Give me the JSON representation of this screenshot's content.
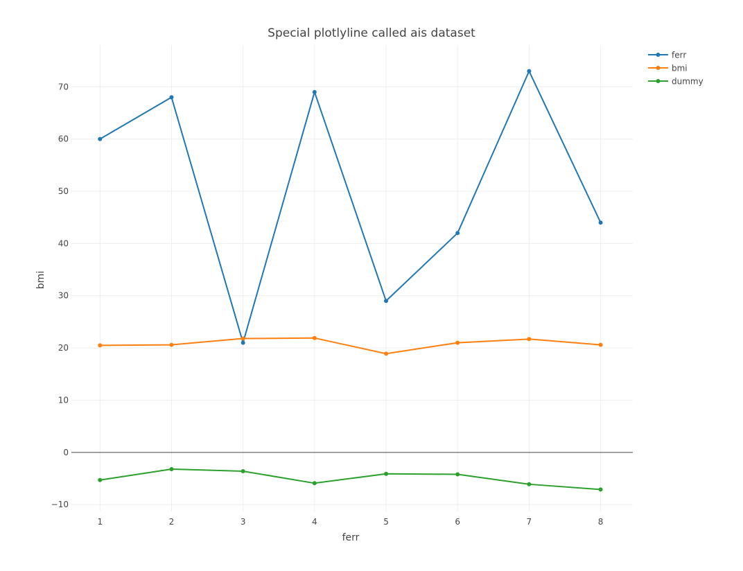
{
  "chart_data": {
    "type": "line",
    "title": "Special plotlyline called ais dataset",
    "xlabel": "ferr",
    "ylabel": "bmi",
    "x": [
      1,
      2,
      3,
      4,
      5,
      6,
      7,
      8
    ],
    "xlim": [
      0.6,
      8.45
    ],
    "ylim": [
      -11.3,
      78.0
    ],
    "xticks": [
      1,
      2,
      3,
      4,
      5,
      6,
      7,
      8
    ],
    "yticks": [
      -10,
      0,
      10,
      20,
      30,
      40,
      50,
      60,
      70
    ],
    "ytick_labels": [
      "−10",
      "0",
      "10",
      "20",
      "30",
      "40",
      "50",
      "60",
      "70"
    ],
    "grid": true,
    "legend_position": "top-right",
    "series": [
      {
        "name": "ferr",
        "color": "#1f77b4",
        "values": [
          60,
          68,
          21,
          69,
          29,
          42,
          73,
          44
        ]
      },
      {
        "name": "bmi",
        "color": "#ff7f0e",
        "values": [
          20.5,
          20.6,
          21.8,
          21.9,
          18.9,
          21.0,
          21.7,
          20.6
        ]
      },
      {
        "name": "dummy",
        "color": "#2ca02c",
        "values": [
          -5.3,
          -3.2,
          -3.6,
          -5.9,
          -4.1,
          -4.2,
          -6.1,
          -7.1
        ]
      }
    ]
  }
}
